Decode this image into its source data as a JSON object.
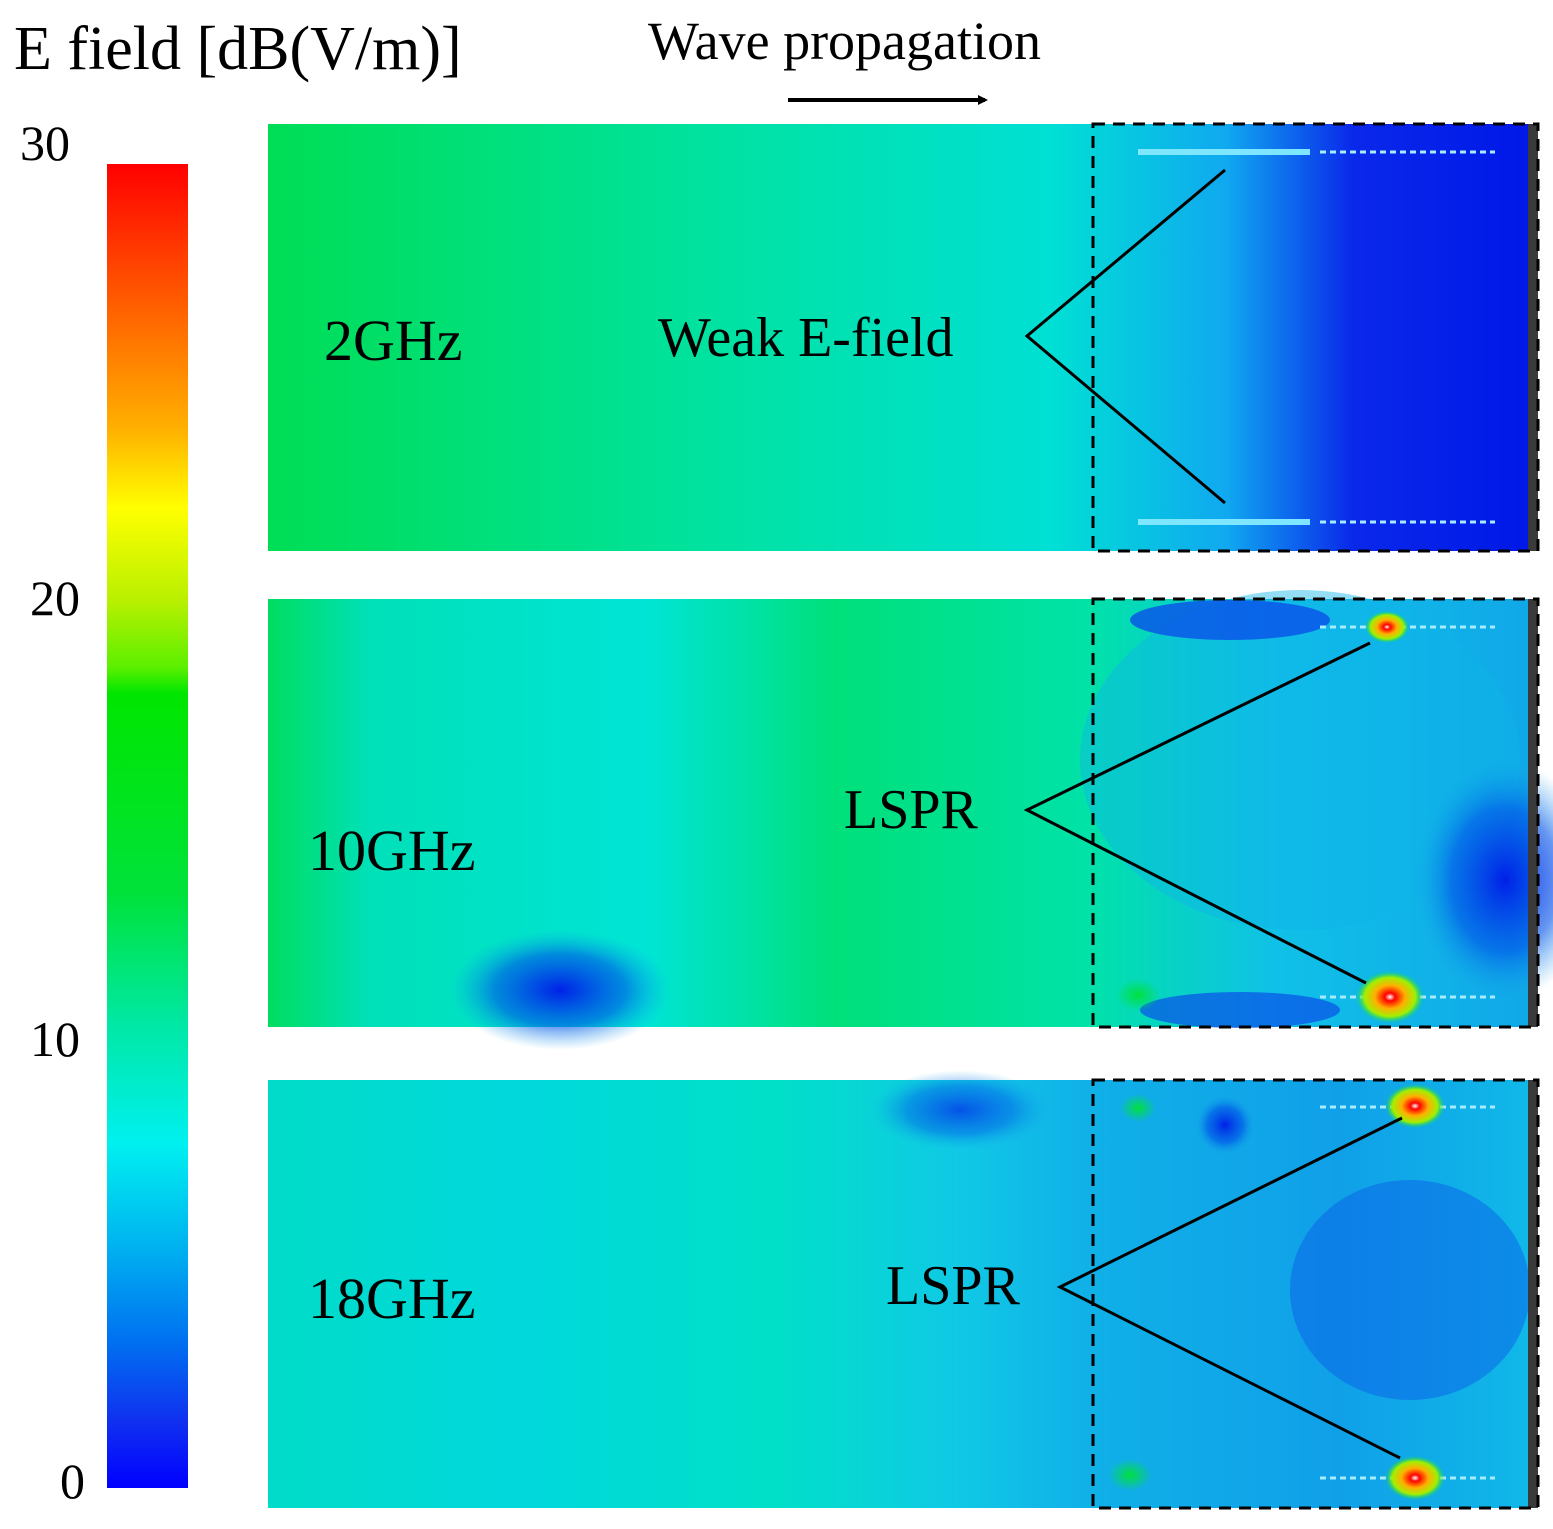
{
  "title": "E field [dB(V/m)]",
  "wave_label": "Wave propagation",
  "colorbar": {
    "ticks": [
      "30",
      "20",
      "10",
      "0"
    ],
    "range": [
      0,
      30
    ],
    "colormap": [
      "#0000ff",
      "#00f0f0",
      "#00e600",
      "#ffff00",
      "#ff0000"
    ]
  },
  "panels": [
    {
      "frequency": "2GHz",
      "annotation": "Weak E-field"
    },
    {
      "frequency": "10GHz",
      "annotation": "LSPR"
    },
    {
      "frequency": "18GHz",
      "annotation": "LSPR"
    }
  ],
  "colors": {
    "arrow": "#000000",
    "box": "#000000",
    "edge": "#3a3a3a"
  }
}
